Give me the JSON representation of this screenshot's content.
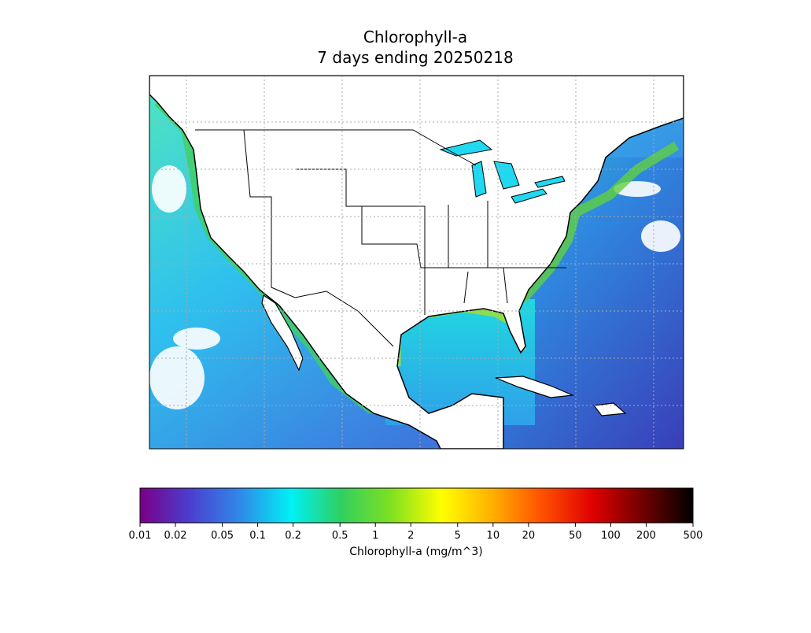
{
  "title": "Chlorophyll-a",
  "subtitle": "7 days ending 20250218",
  "colorbar": {
    "label": "Chlorophyll-a (mg/m^3)",
    "scale": "log",
    "lim": [
      0.01,
      500
    ],
    "ticks": [
      0.01,
      0.02,
      0.05,
      0.1,
      0.2,
      0.5,
      1,
      2,
      5,
      10,
      20,
      50,
      100,
      200,
      500
    ],
    "colors": [
      "#7a0086",
      "#4a3fd0",
      "#2f8ae8",
      "#00f0f5",
      "#2fd060",
      "#80e020",
      "#ffff00",
      "#ffb000",
      "#ff5000",
      "#e00000",
      "#700000",
      "#000000"
    ]
  }
}
